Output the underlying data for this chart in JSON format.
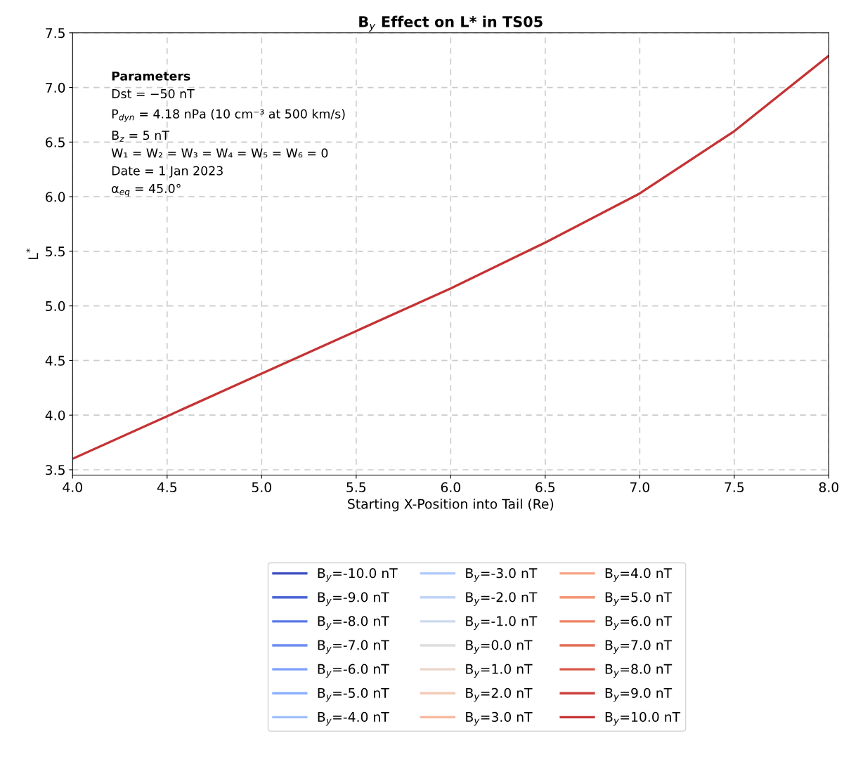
{
  "chart_data": {
    "type": "line",
    "title": "B$_{y}$ Effect on L* in TS05",
    "xlabel": "Starting X-Position into Tail (Re)",
    "ylabel": "L$^{*}$",
    "x": [
      4.0,
      4.5,
      5.0,
      5.5,
      6.0,
      6.5,
      7.0,
      7.5,
      8.0
    ],
    "xlim": [
      4.0,
      8.0
    ],
    "xticks": [
      {
        "value": 4.0,
        "label": "4.0"
      },
      {
        "value": 4.5,
        "label": "4.5"
      },
      {
        "value": 5.0,
        "label": "5.0"
      },
      {
        "value": 5.5,
        "label": "5.5"
      },
      {
        "value": 6.0,
        "label": "6.0"
      },
      {
        "value": 6.5,
        "label": "6.5"
      },
      {
        "value": 7.0,
        "label": "7.0"
      },
      {
        "value": 7.5,
        "label": "7.5"
      },
      {
        "value": 8.0,
        "label": "8.0"
      }
    ],
    "ylim": [
      3.45,
      7.5
    ],
    "yticks": [
      {
        "value": 3.5,
        "label": "3.5"
      },
      {
        "value": 4.0,
        "label": "4.0"
      },
      {
        "value": 4.5,
        "label": "4.5"
      },
      {
        "value": 5.0,
        "label": "5.0"
      },
      {
        "value": 5.5,
        "label": "5.5"
      },
      {
        "value": 6.0,
        "label": "6.0"
      },
      {
        "value": 6.5,
        "label": "6.5"
      },
      {
        "value": 7.0,
        "label": "7.0"
      },
      {
        "value": 7.5,
        "label": "7.5"
      }
    ],
    "grid": true,
    "legend": "bottom",
    "line_style": "solid",
    "marker": "none",
    "annotations": [
      "Parameters",
      "Dst = −50 nT",
      "P$_{dyn}$ = 4.18 nPa (10 cm⁻³ at 500 km/s)",
      "B$_{z}$ = 5 nT",
      "W₁ = W₂ = W₃ = W₄ = W₅ = W₆ = 0",
      "Date = 1 Jan 2023",
      "α$_{eq}$ = 45.0°"
    ],
    "series": [
      {
        "name": "B$_{y}$=-10.0 nT",
        "color": "#3b4cc0",
        "values": [
          null,
          null,
          null,
          null,
          null,
          null,
          null,
          null,
          null
        ]
      },
      {
        "name": "B$_{y}$=-9.0 nT",
        "color": "#4b64d5",
        "values": [
          null,
          null,
          null,
          null,
          null,
          null,
          null,
          null,
          null
        ]
      },
      {
        "name": "B$_{y}$=-8.0 nT",
        "color": "#5b7ae5",
        "values": [
          null,
          null,
          null,
          null,
          null,
          null,
          null,
          null,
          null
        ]
      },
      {
        "name": "B$_{y}$=-7.0 nT",
        "color": "#6b8df0",
        "values": [
          null,
          null,
          null,
          null,
          null,
          null,
          null,
          null,
          null
        ]
      },
      {
        "name": "B$_{y}$=-6.0 nT",
        "color": "#7b9ff9",
        "values": [
          null,
          null,
          null,
          null,
          null,
          null,
          null,
          null,
          null
        ]
      },
      {
        "name": "B$_{y}$=-5.0 nT",
        "color": "#8caffe",
        "values": [
          null,
          null,
          null,
          null,
          null,
          null,
          null,
          null,
          null
        ]
      },
      {
        "name": "B$_{y}$=-4.0 nT",
        "color": "#9ebeff",
        "values": [
          null,
          null,
          null,
          null,
          null,
          null,
          null,
          null,
          null
        ]
      },
      {
        "name": "B$_{y}$=-3.0 nT",
        "color": "#aec9fc",
        "values": [
          null,
          null,
          null,
          null,
          null,
          null,
          null,
          null,
          null
        ]
      },
      {
        "name": "B$_{y}$=-2.0 nT",
        "color": "#bfd3f6",
        "values": [
          null,
          null,
          null,
          null,
          null,
          null,
          null,
          null,
          null
        ]
      },
      {
        "name": "B$_{y}$=-1.0 nT",
        "color": "#cdd9ec",
        "values": [
          null,
          null,
          null,
          null,
          null,
          null,
          null,
          null,
          null
        ]
      },
      {
        "name": "B$_{y}$=0.0 nT",
        "color": "#dddcdc",
        "values": [
          null,
          null,
          null,
          null,
          null,
          null,
          null,
          null,
          null
        ]
      },
      {
        "name": "B$_{y}$=1.0 nT",
        "color": "#ead4c8",
        "values": [
          null,
          null,
          null,
          null,
          null,
          null,
          null,
          null,
          null
        ]
      },
      {
        "name": "B$_{y}$=2.0 nT",
        "color": "#f2cab5",
        "values": [
          null,
          null,
          null,
          null,
          null,
          null,
          null,
          null,
          null
        ]
      },
      {
        "name": "B$_{y}$=3.0 nT",
        "color": "#f7b89c",
        "values": [
          null,
          null,
          null,
          null,
          null,
          null,
          null,
          null,
          null
        ]
      },
      {
        "name": "B$_{y}$=4.0 nT",
        "color": "#f6a385",
        "values": [
          null,
          null,
          null,
          null,
          null,
          null,
          null,
          null,
          null
        ]
      },
      {
        "name": "B$_{y}$=5.0 nT",
        "color": "#f39475",
        "values": [
          null,
          null,
          null,
          null,
          null,
          null,
          null,
          null,
          null
        ]
      },
      {
        "name": "B$_{y}$=6.0 nT",
        "color": "#ec8165",
        "values": [
          null,
          null,
          null,
          null,
          null,
          null,
          null,
          null,
          null
        ]
      },
      {
        "name": "B$_{y}$=7.0 nT",
        "color": "#e36c55",
        "values": [
          null,
          null,
          null,
          null,
          null,
          null,
          null,
          null,
          null
        ]
      },
      {
        "name": "B$_{y}$=8.0 nT",
        "color": "#d85646",
        "values": [
          null,
          null,
          null,
          null,
          null,
          null,
          null,
          null,
          null
        ]
      },
      {
        "name": "B$_{y}$=9.0 nT",
        "color": "#cb3e38",
        "values": [
          null,
          null,
          null,
          null,
          null,
          null,
          null,
          null,
          null
        ]
      },
      {
        "name": "B$_{y}$=10.0 nT",
        "color": "#c53334",
        "values": [
          3.6,
          3.99,
          4.38,
          4.77,
          5.16,
          5.58,
          6.03,
          6.6,
          7.29
        ]
      }
    ]
  }
}
